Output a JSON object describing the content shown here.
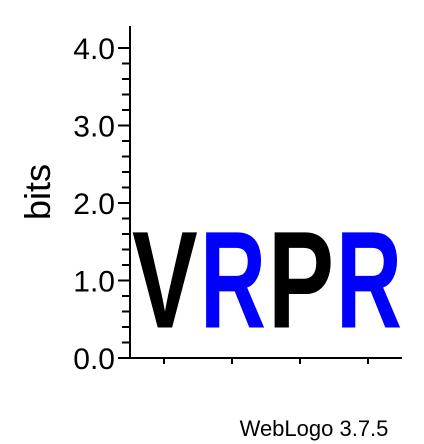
{
  "chart_data": {
    "type": "sequence-logo",
    "ylabel": "bits",
    "ylim": [
      0,
      4.0
    ],
    "yticks": [
      "0.0",
      "1.0",
      "2.0",
      "3.0",
      "4.0"
    ],
    "positions": [
      {
        "letter": "V",
        "bits": 2.0,
        "color": "#000000"
      },
      {
        "letter": "R",
        "bits": 2.0,
        "color": "#0000ff"
      },
      {
        "letter": "P",
        "bits": 2.0,
        "color": "#000000"
      },
      {
        "letter": "R",
        "bits": 2.0,
        "color": "#0000ff"
      }
    ]
  },
  "footer": {
    "label": "WebLogo 3.7.5"
  }
}
